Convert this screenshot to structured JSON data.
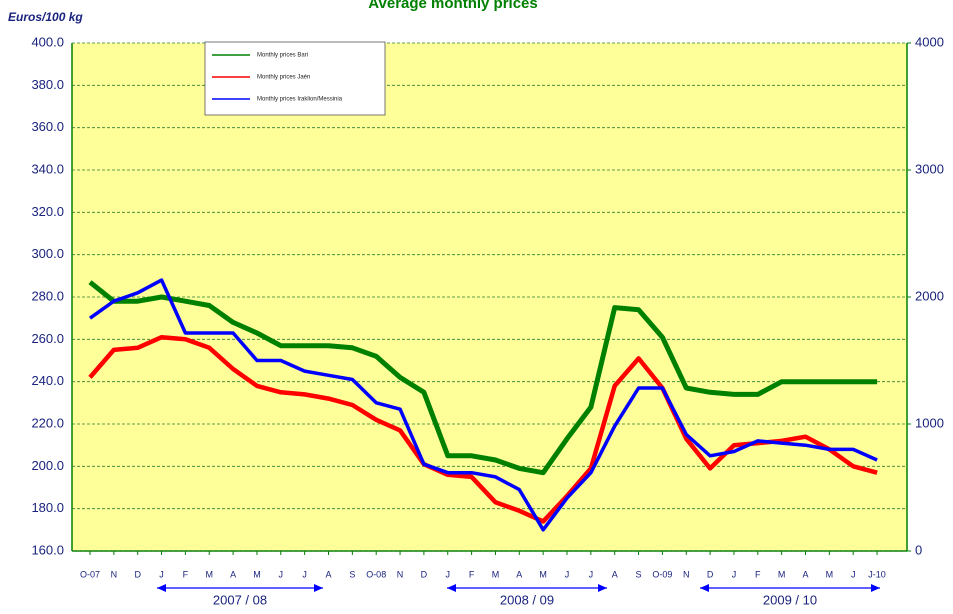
{
  "chart_data": {
    "type": "line",
    "title": "Average monthly prices",
    "y_label": "Euros/100 kg",
    "categories": [
      "O-07",
      "N",
      "D",
      "J",
      "F",
      "M",
      "A",
      "M",
      "J",
      "J",
      "A",
      "S",
      "O-08",
      "N",
      "D",
      "J",
      "F",
      "M",
      "A",
      "M",
      "J",
      "J",
      "A",
      "S",
      "O-09",
      "N",
      "D",
      "J",
      "F",
      "M",
      "A",
      "M",
      "J",
      "J-10"
    ],
    "series": [
      {
        "name": "Monthly prices Bari",
        "color": "#008000",
        "values": [
          287,
          278,
          278,
          280,
          278,
          276,
          268,
          263,
          257,
          257,
          257,
          256,
          252,
          242,
          235,
          205,
          205,
          203,
          199,
          197,
          213,
          228,
          275,
          274,
          261,
          237,
          235,
          234,
          234,
          240,
          240,
          240,
          240,
          240
        ]
      },
      {
        "name": "Monthly prices Jaén",
        "color": "#ff0000",
        "values": [
          242,
          255,
          256,
          261,
          260,
          256,
          246,
          238,
          235,
          234,
          232,
          229,
          222,
          217,
          201,
          196,
          195,
          183,
          179,
          174,
          186,
          199,
          238,
          251,
          237,
          213,
          199,
          210,
          211,
          212,
          214,
          208,
          200,
          197
        ]
      },
      {
        "name": "Monthly prices Iraklion/Messinia",
        "color": "#0000ff",
        "values": [
          270,
          278,
          282,
          288,
          263,
          263,
          263,
          250,
          250,
          245,
          243,
          241,
          230,
          227,
          201,
          197,
          197,
          195,
          189,
          170,
          185,
          197,
          219,
          237,
          237,
          215,
          205,
          207,
          212,
          211,
          210,
          208,
          208,
          203
        ]
      }
    ],
    "ylim": [
      160,
      400
    ],
    "yticks": [
      {
        "value": 160,
        "label": "160.0"
      },
      {
        "value": 180,
        "label": "180.0"
      },
      {
        "value": 200,
        "label": "200.0"
      },
      {
        "value": 220,
        "label": "220.0"
      },
      {
        "value": 240,
        "label": "240.0"
      },
      {
        "value": 260,
        "label": "260.0"
      },
      {
        "value": 280,
        "label": "280.0"
      },
      {
        "value": 300,
        "label": "300.0"
      },
      {
        "value": 320,
        "label": "320.0"
      },
      {
        "value": 340,
        "label": "340.0"
      },
      {
        "value": 360,
        "label": "360.0"
      },
      {
        "value": 380,
        "label": "380.0"
      },
      {
        "value": 400,
        "label": "400.0"
      }
    ],
    "y2lim": [
      0,
      4000
    ],
    "y2ticks": [
      0,
      1000,
      2000,
      3000,
      4000
    ],
    "grid": true,
    "legend": "top-left",
    "annotations": [
      "2007 / 08",
      "2008 / 09",
      "2009 / 10"
    ]
  }
}
